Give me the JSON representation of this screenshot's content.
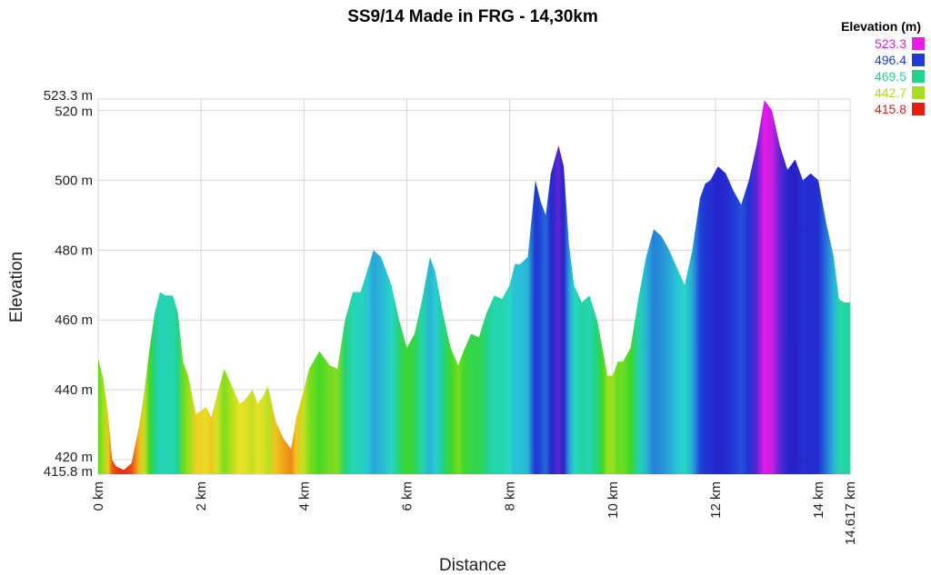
{
  "chart_data": {
    "type": "area",
    "title": "SS9/14 Made in FRG - 14,30km",
    "xlabel": "Distance",
    "ylabel": "Elevation",
    "xlim": [
      0,
      14.617
    ],
    "ylim": [
      415.8,
      523.3
    ],
    "x_ticks": [
      {
        "value": 0,
        "label": "0 km"
      },
      {
        "value": 2,
        "label": "2 km"
      },
      {
        "value": 4,
        "label": "4 km"
      },
      {
        "value": 6,
        "label": "6 km"
      },
      {
        "value": 8,
        "label": "8 km"
      },
      {
        "value": 10,
        "label": "10 km"
      },
      {
        "value": 12,
        "label": "12 km"
      },
      {
        "value": 14,
        "label": "14 km"
      },
      {
        "value": 14.617,
        "label": "14.617 km"
      }
    ],
    "y_ticks": [
      {
        "value": 415.8,
        "label": "415.8 m"
      },
      {
        "value": 420,
        "label": "420 m"
      },
      {
        "value": 440,
        "label": "440 m"
      },
      {
        "value": 460,
        "label": "460 m"
      },
      {
        "value": 480,
        "label": "480 m"
      },
      {
        "value": 500,
        "label": "500 m"
      },
      {
        "value": 520,
        "label": "520 m"
      },
      {
        "value": 523.3,
        "label": "523.3 m"
      }
    ],
    "grid": true,
    "legend": {
      "title": "Elevation (m)",
      "position": "top-right",
      "entries": [
        {
          "label": "523.3",
          "color": "#e81ce8"
        },
        {
          "label": "496.4",
          "color": "#1e3cd8"
        },
        {
          "label": "469.5",
          "color": "#22d38a"
        },
        {
          "label": "442.7",
          "color": "#a6e01a"
        },
        {
          "label": "415.8",
          "color": "#e81c10"
        }
      ]
    },
    "x": [
      0,
      0.1,
      0.2,
      0.27,
      0.35,
      0.5,
      0.65,
      0.8,
      0.9,
      1.0,
      1.1,
      1.2,
      1.3,
      1.45,
      1.55,
      1.65,
      1.75,
      1.9,
      2.0,
      2.1,
      2.2,
      2.3,
      2.45,
      2.6,
      2.75,
      2.85,
      3.0,
      3.1,
      3.2,
      3.3,
      3.45,
      3.6,
      3.75,
      3.85,
      4.0,
      4.1,
      4.3,
      4.5,
      4.65,
      4.8,
      4.95,
      5.1,
      5.25,
      5.35,
      5.5,
      5.7,
      5.85,
      6.0,
      6.15,
      6.3,
      6.45,
      6.55,
      6.7,
      6.85,
      7.0,
      7.1,
      7.25,
      7.4,
      7.55,
      7.7,
      7.85,
      8.0,
      8.1,
      8.2,
      8.35,
      8.5,
      8.6,
      8.7,
      8.8,
      8.95,
      9.05,
      9.15,
      9.25,
      9.4,
      9.55,
      9.7,
      9.8,
      9.9,
      10.0,
      10.1,
      10.2,
      10.35,
      10.5,
      10.65,
      10.8,
      10.95,
      11.1,
      11.25,
      11.4,
      11.55,
      11.7,
      11.8,
      11.9,
      12.05,
      12.2,
      12.35,
      12.5,
      12.65,
      12.8,
      12.95,
      13.1,
      13.25,
      13.4,
      13.55,
      13.7,
      13.85,
      14.0,
      14.15,
      14.3,
      14.4,
      14.5,
      14.617
    ],
    "y": [
      449,
      443,
      432,
      420,
      418,
      417,
      419,
      430,
      440,
      452,
      462,
      468,
      467,
      467,
      462,
      448,
      444,
      433,
      434,
      435,
      432,
      438,
      446,
      441,
      436,
      437,
      440,
      436,
      438,
      441,
      431,
      426,
      423,
      432,
      440,
      446,
      451,
      447,
      446,
      460,
      468,
      468,
      475,
      480,
      478,
      470,
      460,
      452,
      456,
      466,
      478,
      474,
      462,
      452,
      447,
      451,
      456,
      455,
      462,
      467,
      466,
      470,
      476,
      476,
      478,
      500,
      494,
      490,
      502,
      510,
      504,
      482,
      470,
      465,
      467,
      460,
      452,
      444,
      444,
      448,
      448,
      452,
      466,
      478,
      486,
      484,
      480,
      475,
      470,
      480,
      495,
      499,
      500,
      504,
      502,
      497,
      493,
      500,
      510,
      523,
      520,
      510,
      503,
      506,
      500,
      502,
      500,
      488,
      478,
      466,
      465,
      465
    ]
  }
}
